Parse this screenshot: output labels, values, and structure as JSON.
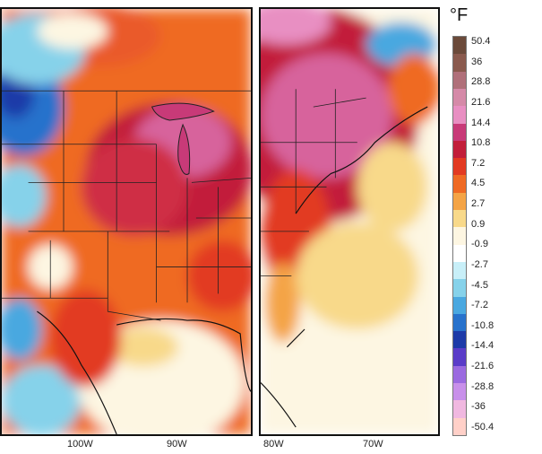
{
  "colorbar": {
    "unit": "°F",
    "ticks": [
      "50.4",
      "36",
      "28.8",
      "21.6",
      "14.4",
      "10.8",
      "7.2",
      "4.5",
      "2.7",
      "0.9",
      "-0.9",
      "-2.7",
      "-4.5",
      "-7.2",
      "-10.8",
      "-14.4",
      "-21.6",
      "-28.8",
      "-36",
      "-50.4"
    ],
    "colors": [
      "#6b4a3a",
      "#8a5a4e",
      "#b0707a",
      "#d58aa8",
      "#e88fc2",
      "#c83a78",
      "#c21e3a",
      "#e23a22",
      "#ef6a24",
      "#f4a446",
      "#f8d98a",
      "#fdf6e2",
      "#ffffff",
      "#c8eff8",
      "#86d2ea",
      "#4aa8e0",
      "#2872cc",
      "#1d3aa8",
      "#5a3cc8",
      "#9b6ae0",
      "#c890ea",
      "#f0b8e0",
      "#ffd0c8"
    ]
  },
  "left_panel": {
    "lon_labels": [
      "100W",
      "90W"
    ]
  },
  "right_panel": {
    "lon_labels": [
      "80W",
      "70W"
    ]
  }
}
